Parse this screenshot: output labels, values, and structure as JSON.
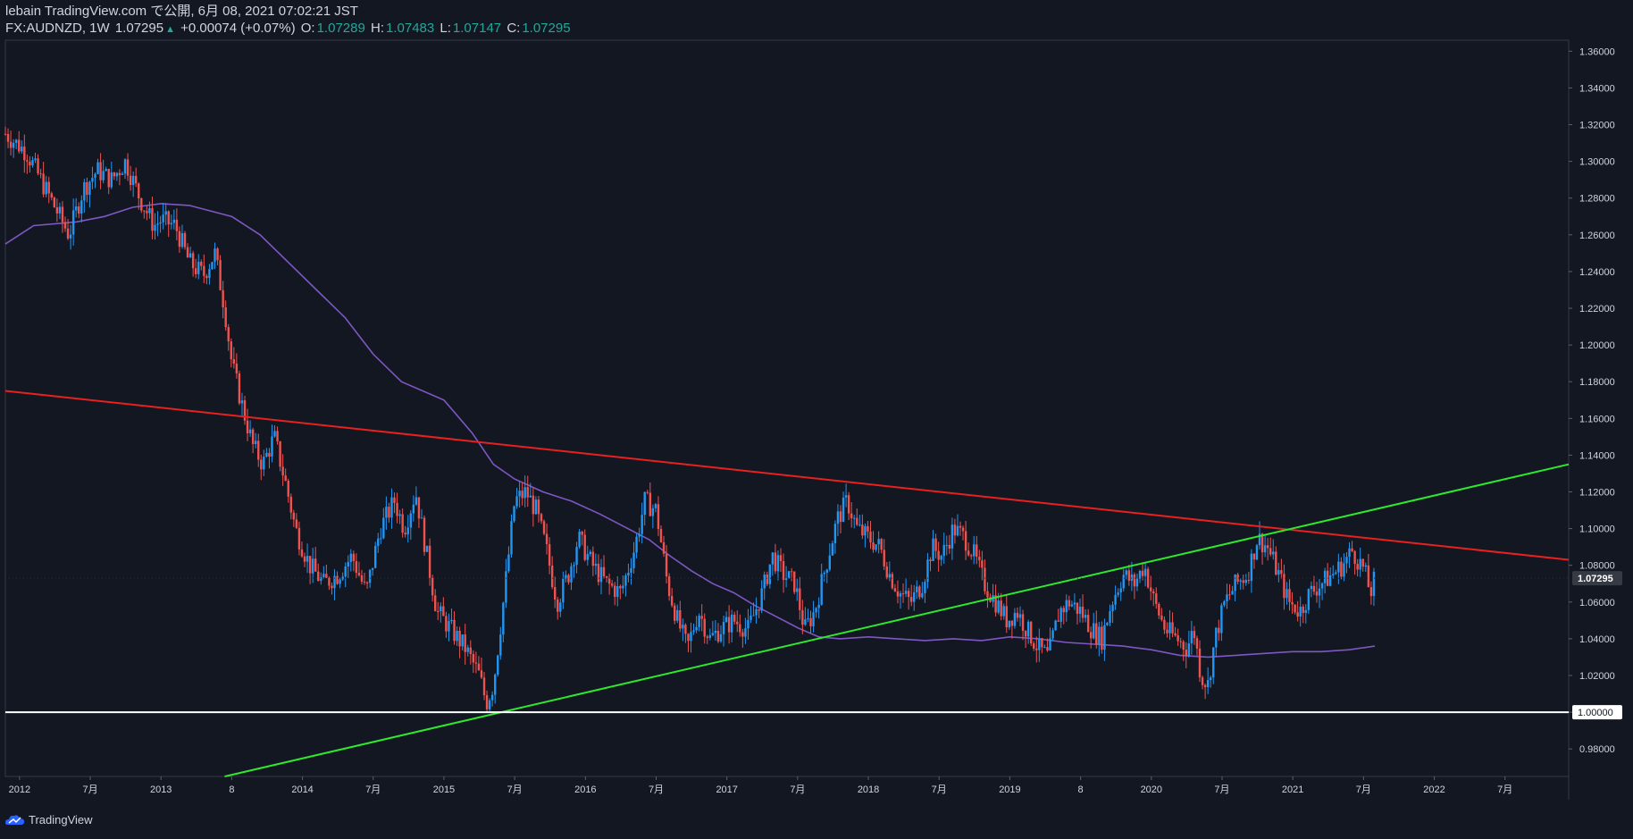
{
  "header": {
    "publish_line": "lebain TradingView.com で公開, 6月 08, 2021 07:02:21 JST",
    "symbol": "FX:AUDNZD, 1W",
    "last": "1.07295",
    "arrow": "▲",
    "change": "+0.00074 (+0.07%)",
    "o_label": "O:",
    "o_value": "1.07289",
    "h_label": "H:",
    "h_value": "1.07483",
    "l_label": "L:",
    "l_value": "1.07147",
    "c_label": "C:",
    "c_value": "1.07295"
  },
  "footer": {
    "brand": "TradingView"
  },
  "colors": {
    "background": "#131722",
    "up_candle": "#2196f3",
    "down_candle": "#ef5350",
    "moving_average": "#7e57c2",
    "resistance_line": "#e82020",
    "support_line": "#2ee82e",
    "horizontal_line": "#ffffff",
    "text": "#d1d4dc",
    "change_green": "#26a69a"
  },
  "chart_data": {
    "type": "candlestick",
    "title": "",
    "xlabel": "",
    "ylabel": "",
    "ylim": [
      0.965,
      1.366
    ],
    "xlim": [
      2011.9,
      2022.95
    ],
    "y_ticks": [
      "1.36000",
      "1.34000",
      "1.32000",
      "1.30000",
      "1.28000",
      "1.26000",
      "1.24000",
      "1.22000",
      "1.20000",
      "1.18000",
      "1.16000",
      "1.14000",
      "1.12000",
      "1.10000",
      "1.08000",
      "1.06000",
      "1.04000",
      "1.02000",
      "1.00000",
      "0.98000"
    ],
    "x_ticks": [
      {
        "t": 2012.0,
        "label": "2012"
      },
      {
        "t": 2012.5,
        "label": "7月"
      },
      {
        "t": 2013.0,
        "label": "2013"
      },
      {
        "t": 2013.5,
        "label": "8"
      },
      {
        "t": 2014.0,
        "label": "2014"
      },
      {
        "t": 2014.5,
        "label": "7月"
      },
      {
        "t": 2015.0,
        "label": "2015"
      },
      {
        "t": 2015.5,
        "label": "7月"
      },
      {
        "t": 2016.0,
        "label": "2016"
      },
      {
        "t": 2016.5,
        "label": "7月"
      },
      {
        "t": 2017.0,
        "label": "2017"
      },
      {
        "t": 2017.5,
        "label": "7月"
      },
      {
        "t": 2018.0,
        "label": "2018"
      },
      {
        "t": 2018.5,
        "label": "7月"
      },
      {
        "t": 2019.0,
        "label": "2019"
      },
      {
        "t": 2019.5,
        "label": "8"
      },
      {
        "t": 2020.0,
        "label": "2020"
      },
      {
        "t": 2020.5,
        "label": "7月"
      },
      {
        "t": 2021.0,
        "label": "2021"
      },
      {
        "t": 2021.5,
        "label": "7月"
      },
      {
        "t": 2022.0,
        "label": "2022"
      },
      {
        "t": 2022.5,
        "label": "7月"
      }
    ],
    "last_price": {
      "value": 1.07295,
      "label": "1.07295"
    },
    "horizontal_level": {
      "value": 1.0,
      "label": "1.00000"
    },
    "price_path": [
      [
        2011.9,
        1.315
      ],
      [
        2012.05,
        1.305
      ],
      [
        2012.15,
        1.29
      ],
      [
        2012.25,
        1.275
      ],
      [
        2012.35,
        1.26
      ],
      [
        2012.45,
        1.285
      ],
      [
        2012.55,
        1.295
      ],
      [
        2012.65,
        1.29
      ],
      [
        2012.75,
        1.3
      ],
      [
        2012.85,
        1.28
      ],
      [
        2012.95,
        1.265
      ],
      [
        2013.0,
        1.268
      ],
      [
        2013.1,
        1.265
      ],
      [
        2013.2,
        1.245
      ],
      [
        2013.3,
        1.238
      ],
      [
        2013.38,
        1.25
      ],
      [
        2013.45,
        1.22
      ],
      [
        2013.5,
        1.19
      ],
      [
        2013.58,
        1.165
      ],
      [
        2013.65,
        1.145
      ],
      [
        2013.72,
        1.135
      ],
      [
        2013.8,
        1.15
      ],
      [
        2013.88,
        1.125
      ],
      [
        2013.95,
        1.1
      ],
      [
        2014.05,
        1.08
      ],
      [
        2014.15,
        1.07
      ],
      [
        2014.25,
        1.075
      ],
      [
        2014.35,
        1.085
      ],
      [
        2014.45,
        1.065
      ],
      [
        2014.55,
        1.1
      ],
      [
        2014.65,
        1.115
      ],
      [
        2014.72,
        1.1
      ],
      [
        2014.8,
        1.12
      ],
      [
        2014.88,
        1.085
      ],
      [
        2014.95,
        1.055
      ],
      [
        2015.05,
        1.045
      ],
      [
        2015.15,
        1.035
      ],
      [
        2015.25,
        1.02
      ],
      [
        2015.3,
        1.005
      ],
      [
        2015.35,
        1.015
      ],
      [
        2015.42,
        1.06
      ],
      [
        2015.5,
        1.115
      ],
      [
        2015.58,
        1.12
      ],
      [
        2015.65,
        1.11
      ],
      [
        2015.72,
        1.09
      ],
      [
        2015.8,
        1.06
      ],
      [
        2015.88,
        1.075
      ],
      [
        2015.95,
        1.095
      ],
      [
        2016.05,
        1.08
      ],
      [
        2016.15,
        1.07
      ],
      [
        2016.25,
        1.065
      ],
      [
        2016.35,
        1.09
      ],
      [
        2016.42,
        1.115
      ],
      [
        2016.5,
        1.11
      ],
      [
        2016.58,
        1.07
      ],
      [
        2016.65,
        1.05
      ],
      [
        2016.72,
        1.035
      ],
      [
        2016.8,
        1.055
      ],
      [
        2016.88,
        1.04
      ],
      [
        2016.95,
        1.045
      ],
      [
        2017.05,
        1.05
      ],
      [
        2017.15,
        1.045
      ],
      [
        2017.25,
        1.065
      ],
      [
        2017.32,
        1.085
      ],
      [
        2017.4,
        1.075
      ],
      [
        2017.48,
        1.07
      ],
      [
        2017.55,
        1.045
      ],
      [
        2017.62,
        1.055
      ],
      [
        2017.7,
        1.08
      ],
      [
        2017.78,
        1.105
      ],
      [
        2017.85,
        1.115
      ],
      [
        2017.92,
        1.1
      ],
      [
        2018.0,
        1.095
      ],
      [
        2018.08,
        1.09
      ],
      [
        2018.15,
        1.075
      ],
      [
        2018.22,
        1.065
      ],
      [
        2018.3,
        1.06
      ],
      [
        2018.38,
        1.07
      ],
      [
        2018.45,
        1.09
      ],
      [
        2018.52,
        1.085
      ],
      [
        2018.6,
        1.1
      ],
      [
        2018.68,
        1.095
      ],
      [
        2018.75,
        1.085
      ],
      [
        2018.82,
        1.07
      ],
      [
        2018.9,
        1.06
      ],
      [
        2018.98,
        1.05
      ],
      [
        2019.05,
        1.055
      ],
      [
        2019.12,
        1.045
      ],
      [
        2019.2,
        1.035
      ],
      [
        2019.27,
        1.03
      ],
      [
        2019.35,
        1.055
      ],
      [
        2019.42,
        1.06
      ],
      [
        2019.5,
        1.055
      ],
      [
        2019.58,
        1.045
      ],
      [
        2019.65,
        1.04
      ],
      [
        2019.72,
        1.06
      ],
      [
        2019.8,
        1.075
      ],
      [
        2019.88,
        1.07
      ],
      [
        2019.95,
        1.08
      ],
      [
        2020.02,
        1.06
      ],
      [
        2020.1,
        1.045
      ],
      [
        2020.18,
        1.04
      ],
      [
        2020.25,
        1.035
      ],
      [
        2020.3,
        1.045
      ],
      [
        2020.35,
        1.02
      ],
      [
        2020.4,
        1.015
      ],
      [
        2020.45,
        1.04
      ],
      [
        2020.52,
        1.06
      ],
      [
        2020.6,
        1.07
      ],
      [
        2020.68,
        1.075
      ],
      [
        2020.75,
        1.095
      ],
      [
        2020.82,
        1.09
      ],
      [
        2020.9,
        1.075
      ],
      [
        2020.97,
        1.06
      ],
      [
        2021.05,
        1.055
      ],
      [
        2021.12,
        1.065
      ],
      [
        2021.2,
        1.07
      ],
      [
        2021.28,
        1.075
      ],
      [
        2021.35,
        1.08
      ],
      [
        2021.42,
        1.088
      ],
      [
        2021.5,
        1.078
      ],
      [
        2021.55,
        1.065
      ],
      [
        2021.58,
        1.073
      ]
    ],
    "moving_average": [
      [
        2011.9,
        1.255
      ],
      [
        2012.1,
        1.265
      ],
      [
        2012.4,
        1.267
      ],
      [
        2012.6,
        1.27
      ],
      [
        2012.8,
        1.275
      ],
      [
        2013.0,
        1.277
      ],
      [
        2013.2,
        1.276
      ],
      [
        2013.5,
        1.27
      ],
      [
        2013.7,
        1.26
      ],
      [
        2013.9,
        1.245
      ],
      [
        2014.1,
        1.23
      ],
      [
        2014.3,
        1.215
      ],
      [
        2014.5,
        1.195
      ],
      [
        2014.7,
        1.18
      ],
      [
        2015.0,
        1.17
      ],
      [
        2015.2,
        1.152
      ],
      [
        2015.35,
        1.135
      ],
      [
        2015.5,
        1.127
      ],
      [
        2015.7,
        1.12
      ],
      [
        2015.9,
        1.115
      ],
      [
        2016.1,
        1.108
      ],
      [
        2016.3,
        1.1
      ],
      [
        2016.45,
        1.094
      ],
      [
        2016.6,
        1.085
      ],
      [
        2016.75,
        1.077
      ],
      [
        2016.9,
        1.07
      ],
      [
        2017.05,
        1.065
      ],
      [
        2017.2,
        1.058
      ],
      [
        2017.35,
        1.052
      ],
      [
        2017.5,
        1.046
      ],
      [
        2017.65,
        1.041
      ],
      [
        2017.8,
        1.04
      ],
      [
        2018.0,
        1.041
      ],
      [
        2018.2,
        1.04
      ],
      [
        2018.4,
        1.039
      ],
      [
        2018.6,
        1.04
      ],
      [
        2018.8,
        1.039
      ],
      [
        2019.0,
        1.041
      ],
      [
        2019.2,
        1.04
      ],
      [
        2019.4,
        1.038
      ],
      [
        2019.6,
        1.037
      ],
      [
        2019.8,
        1.036
      ],
      [
        2020.0,
        1.034
      ],
      [
        2020.2,
        1.031
      ],
      [
        2020.4,
        1.03
      ],
      [
        2020.6,
        1.031
      ],
      [
        2020.8,
        1.032
      ],
      [
        2021.0,
        1.033
      ],
      [
        2021.2,
        1.033
      ],
      [
        2021.4,
        1.034
      ],
      [
        2021.58,
        1.036
      ]
    ],
    "trendlines": [
      {
        "name": "resistance",
        "points": [
          [
            2011.9,
            1.175
          ],
          [
            2022.95,
            1.083
          ]
        ]
      },
      {
        "name": "support",
        "points": [
          [
            2013.45,
            0.965
          ],
          [
            2022.95,
            1.135
          ]
        ]
      },
      {
        "name": "horizontal",
        "points": [
          [
            2011.9,
            1.0
          ],
          [
            2022.95,
            1.0
          ]
        ]
      }
    ],
    "grid": false,
    "legend": "none"
  }
}
